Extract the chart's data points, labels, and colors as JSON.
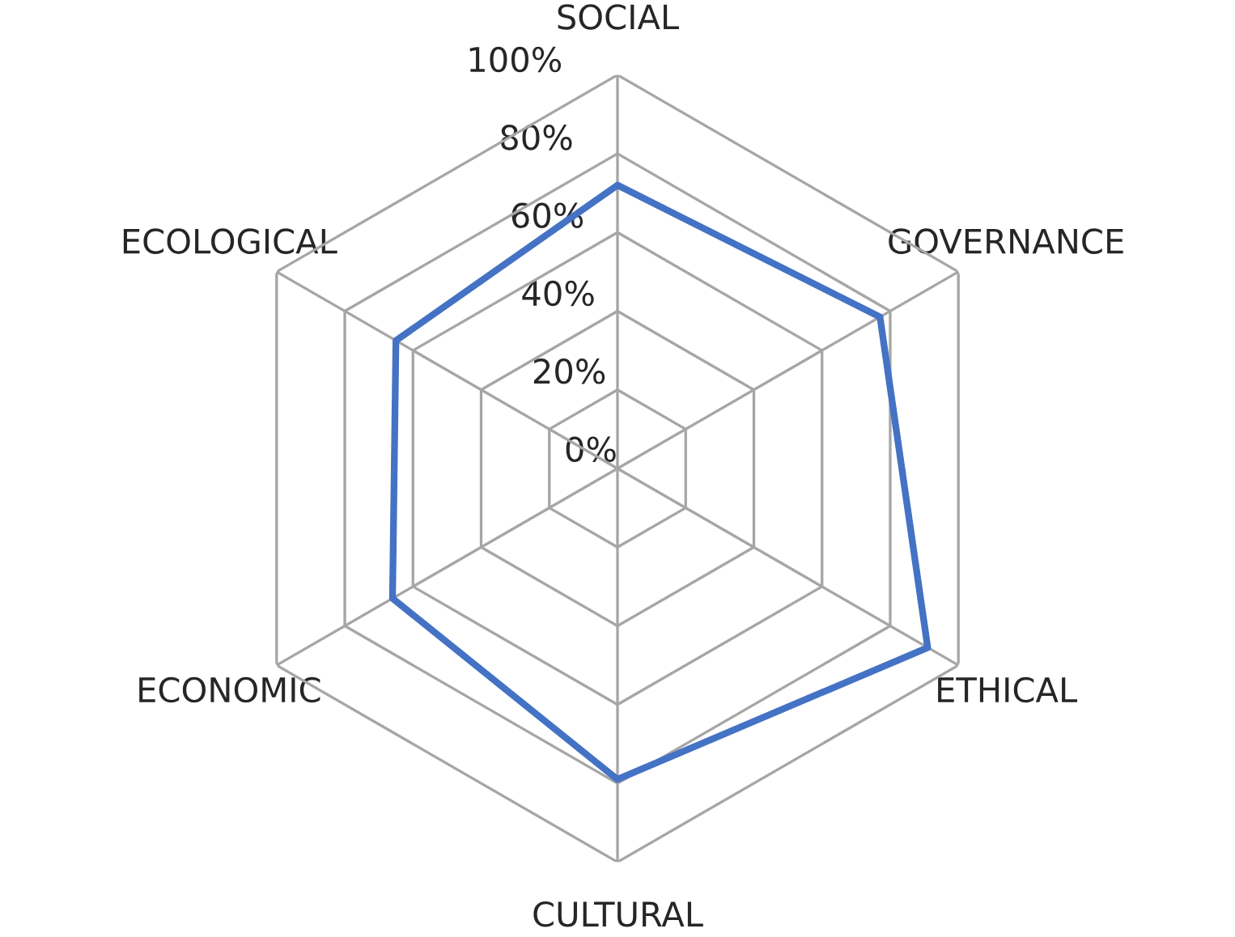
{
  "chart_data": {
    "type": "radar",
    "categories": [
      "SOCIAL",
      "GOVERNANCE",
      "ETHICAL",
      "CULTURAL",
      "ECONOMIC",
      "ECOLOGICAL"
    ],
    "series": [
      {
        "color": "#4472c4",
        "values": [
          72,
          77,
          91,
          79,
          66,
          65
        ]
      }
    ],
    "ylim": [
      0,
      100
    ],
    "yticks": [
      {
        "value": 0,
        "label": "0%"
      },
      {
        "value": 20,
        "label": "20%"
      },
      {
        "value": 40,
        "label": "40%"
      },
      {
        "value": 60,
        "label": "60%"
      },
      {
        "value": 80,
        "label": "80%"
      },
      {
        "value": 100,
        "label": "100%"
      }
    ],
    "grid": true,
    "marker": "none"
  }
}
